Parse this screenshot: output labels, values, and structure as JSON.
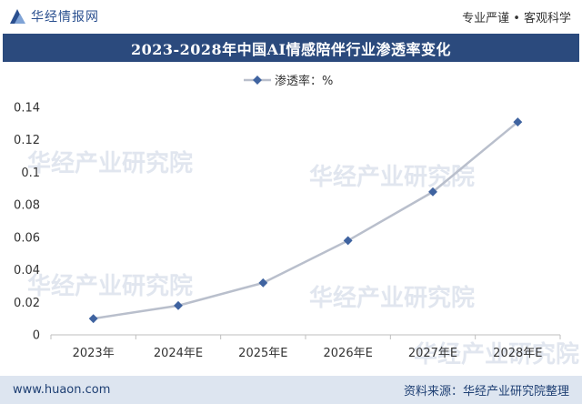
{
  "header": {
    "brand": "华经情报网",
    "slogan": "专业严谨 • 客观科学"
  },
  "watermark": "华经产业研究院",
  "chart_data": {
    "type": "line",
    "title": "2023-2028年中国AI情感陪伴行业渗透率变化",
    "categories": [
      "2023年",
      "2024年E",
      "2025年E",
      "2026年E",
      "2027年E",
      "2028年E"
    ],
    "series": [
      {
        "name": "渗透率：%",
        "values": [
          0.01,
          0.018,
          0.032,
          0.058,
          0.088,
          0.131
        ]
      }
    ],
    "y_ticks": [
      "0",
      "0.02",
      "0.04",
      "0.06",
      "0.08",
      "0.1",
      "0.12",
      "0.14"
    ],
    "ylim": [
      0,
      0.14
    ],
    "legend_position": "top-center",
    "grid": false,
    "line_color": "#b9bfcc",
    "marker_color": "#3f63a0"
  },
  "footer": {
    "site": "www.huaon.com",
    "source": "资料来源：华经产业研究院整理"
  }
}
